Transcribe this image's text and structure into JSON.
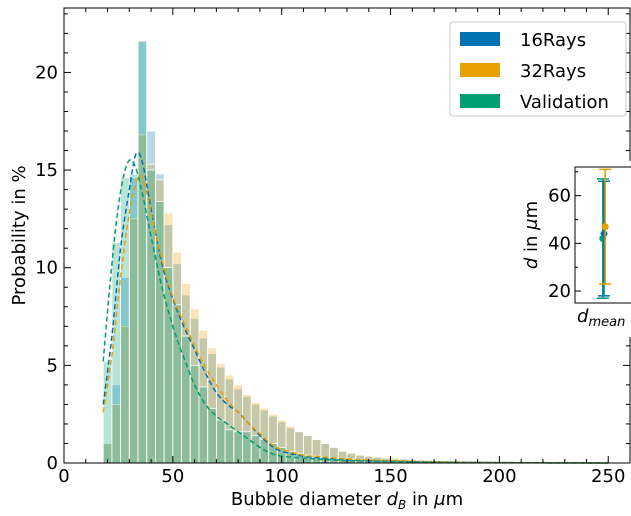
{
  "chart_data": {
    "type": "histogram",
    "xlabel": "Bubble diameter d_B in μm",
    "xlabel_parts": {
      "main": "Bubble diameter ",
      "var": "d",
      "sub": "B",
      "unit_pre": " in ",
      "mu": "μ",
      "unit": "m"
    },
    "ylabel": "Probability in %",
    "xlim": [
      0,
      260
    ],
    "ylim": [
      0,
      23.3
    ],
    "xticks": [
      0,
      50,
      100,
      150,
      200,
      250
    ],
    "yticks": [
      0,
      5,
      10,
      15,
      20
    ],
    "legend": {
      "placement": "top-right"
    },
    "bin_width": 4,
    "series": [
      {
        "name": "16Rays",
        "color": "#0072B2",
        "bar_opacity": 0.28,
        "bins_start": 18,
        "values": [
          1.0,
          4.0,
          9.5,
          14.6,
          21.6,
          17.0,
          14.8,
          12.2,
          10.2,
          8.6,
          7.4,
          6.4,
          5.6,
          4.9,
          4.3,
          3.8,
          3.4,
          3.0,
          2.7,
          2.4,
          2.1,
          1.8,
          1.6,
          1.4,
          1.2,
          1.0,
          0.8,
          0.6,
          0.5,
          0.4,
          0.35,
          0.3,
          0.25,
          0.2,
          0.2,
          0.15,
          0.12,
          0.1,
          0.1,
          0.1,
          0.08,
          0.08,
          0.06,
          0.05,
          0.05,
          0.04,
          0.04,
          0.03,
          0.03,
          0.02,
          0.02,
          0.02,
          0.02,
          0.01,
          0.01,
          0.01,
          0.01,
          0.01,
          0.01,
          0.01
        ],
        "kde": [
          [
            18,
            3.0
          ],
          [
            22,
            6.5
          ],
          [
            26,
            11.0
          ],
          [
            30,
            14.0
          ],
          [
            33,
            15.8
          ],
          [
            36,
            15.4
          ],
          [
            40,
            13.0
          ],
          [
            45,
            10.2
          ],
          [
            50,
            8.4
          ],
          [
            55,
            7.0
          ],
          [
            60,
            5.8
          ],
          [
            65,
            4.6
          ],
          [
            70,
            3.6
          ],
          [
            75,
            3.0
          ],
          [
            80,
            2.6
          ],
          [
            85,
            2.0
          ],
          [
            90,
            1.4
          ],
          [
            95,
            0.9
          ],
          [
            100,
            0.6
          ],
          [
            110,
            0.35
          ],
          [
            120,
            0.25
          ],
          [
            130,
            0.15
          ],
          [
            140,
            0.12
          ],
          [
            150,
            0.1
          ],
          [
            160,
            0.08
          ],
          [
            170,
            0.06
          ],
          [
            180,
            0.04
          ],
          [
            190,
            0.03
          ],
          [
            200,
            0.02
          ],
          [
            220,
            0.01
          ],
          [
            250,
            0.0
          ]
        ]
      },
      {
        "name": "32Rays",
        "color": "#E69F00",
        "bar_opacity": 0.28,
        "bins_start": 18,
        "values": [
          1.0,
          3.0,
          7.0,
          12.5,
          16.8,
          15.3,
          14.5,
          12.8,
          10.8,
          9.2,
          7.9,
          6.8,
          5.9,
          5.1,
          4.5,
          4.0,
          3.5,
          3.1,
          2.8,
          2.5,
          2.2,
          1.9,
          1.6,
          1.4,
          1.2,
          1.0,
          0.8,
          0.6,
          0.5,
          0.4,
          0.35,
          0.3,
          0.25,
          0.25,
          0.2,
          0.15,
          0.12,
          0.1,
          0.1,
          0.1,
          0.08,
          0.08,
          0.06,
          0.05,
          0.05,
          0.04,
          0.04,
          0.03,
          0.03,
          0.02,
          0.02,
          0.02,
          0.02,
          0.01,
          0.01,
          0.01,
          0.01,
          0.01,
          0.01,
          0.01
        ],
        "kde": [
          [
            18,
            2.6
          ],
          [
            22,
            5.5
          ],
          [
            26,
            9.5
          ],
          [
            30,
            12.8
          ],
          [
            34,
            14.6
          ],
          [
            37,
            14.3
          ],
          [
            40,
            12.8
          ],
          [
            45,
            10.4
          ],
          [
            50,
            8.5
          ],
          [
            55,
            7.2
          ],
          [
            60,
            6.0
          ],
          [
            65,
            4.9
          ],
          [
            70,
            4.0
          ],
          [
            75,
            3.2
          ],
          [
            80,
            2.6
          ],
          [
            85,
            2.0
          ],
          [
            90,
            1.5
          ],
          [
            95,
            1.0
          ],
          [
            100,
            0.7
          ],
          [
            110,
            0.4
          ],
          [
            120,
            0.3
          ],
          [
            130,
            0.2
          ],
          [
            140,
            0.15
          ],
          [
            150,
            0.12
          ],
          [
            160,
            0.1
          ],
          [
            170,
            0.07
          ],
          [
            180,
            0.05
          ],
          [
            190,
            0.03
          ],
          [
            200,
            0.02
          ],
          [
            220,
            0.01
          ],
          [
            250,
            0.0
          ]
        ]
      },
      {
        "name": "Validation",
        "color": "#009E73",
        "bar_opacity": 0.28,
        "bins_start": 18,
        "values": [
          5.2,
          11.3,
          14.6,
          14.8,
          21.6,
          15.0,
          13.4,
          10.0,
          8.1,
          6.5,
          5.0,
          3.9,
          2.8,
          2.2,
          1.7,
          1.6,
          1.6,
          1.4,
          1.2,
          1.0,
          0.8,
          0.6,
          0.5,
          0.4,
          0.35,
          0.3,
          0.25,
          0.2,
          0.2,
          0.15,
          0.12,
          0.1,
          0.1,
          0.08,
          0.06,
          0.05,
          0.05,
          0.04,
          0.04,
          0.04,
          0.04,
          0.04,
          0.04,
          0.04,
          0.04,
          0.04,
          0.04,
          0.04,
          0.04,
          0.04,
          0.04,
          0.04,
          0.04,
          0.04,
          0.04,
          0.04,
          0.04,
          0.04,
          0.04,
          0.04
        ],
        "kde": [
          [
            18,
            5.2
          ],
          [
            21,
            9.0
          ],
          [
            24,
            12.3
          ],
          [
            27,
            14.5
          ],
          [
            30,
            15.5
          ],
          [
            33,
            15.1
          ],
          [
            36,
            13.8
          ],
          [
            40,
            11.6
          ],
          [
            45,
            9.0
          ],
          [
            50,
            7.0
          ],
          [
            55,
            5.4
          ],
          [
            60,
            4.0
          ],
          [
            65,
            3.0
          ],
          [
            70,
            2.4
          ],
          [
            75,
            2.0
          ],
          [
            80,
            1.6
          ],
          [
            85,
            1.2
          ],
          [
            90,
            0.8
          ],
          [
            95,
            0.5
          ],
          [
            100,
            0.35
          ],
          [
            110,
            0.25
          ],
          [
            120,
            0.18
          ],
          [
            130,
            0.12
          ],
          [
            140,
            0.1
          ],
          [
            150,
            0.08
          ],
          [
            160,
            0.06
          ],
          [
            170,
            0.04
          ],
          [
            180,
            0.03
          ],
          [
            200,
            0.02
          ],
          [
            220,
            0.01
          ],
          [
            250,
            0.0
          ]
        ]
      }
    ],
    "inset": {
      "xlabel": "d_mean",
      "xlabel_parts": {
        "var": "d",
        "sub": "mean"
      },
      "ylabel": "d in μm",
      "ylabel_parts": {
        "var": "d",
        "mid": " in ",
        "mu": "μ",
        "unit": "m"
      },
      "ylim": [
        15,
        72
      ],
      "yticks": [
        20,
        40,
        60
      ],
      "points": [
        {
          "series": "Validation",
          "color": "#009E73",
          "mean": 42.0,
          "low": 17.0,
          "high": 67.0
        },
        {
          "series": "16Rays",
          "color": "#0072B2",
          "mean": 44.0,
          "low": 18.0,
          "high": 66.0
        },
        {
          "series": "32Rays",
          "color": "#E69F00",
          "mean": 47.0,
          "low": 23.0,
          "high": 71.0
        }
      ]
    }
  }
}
